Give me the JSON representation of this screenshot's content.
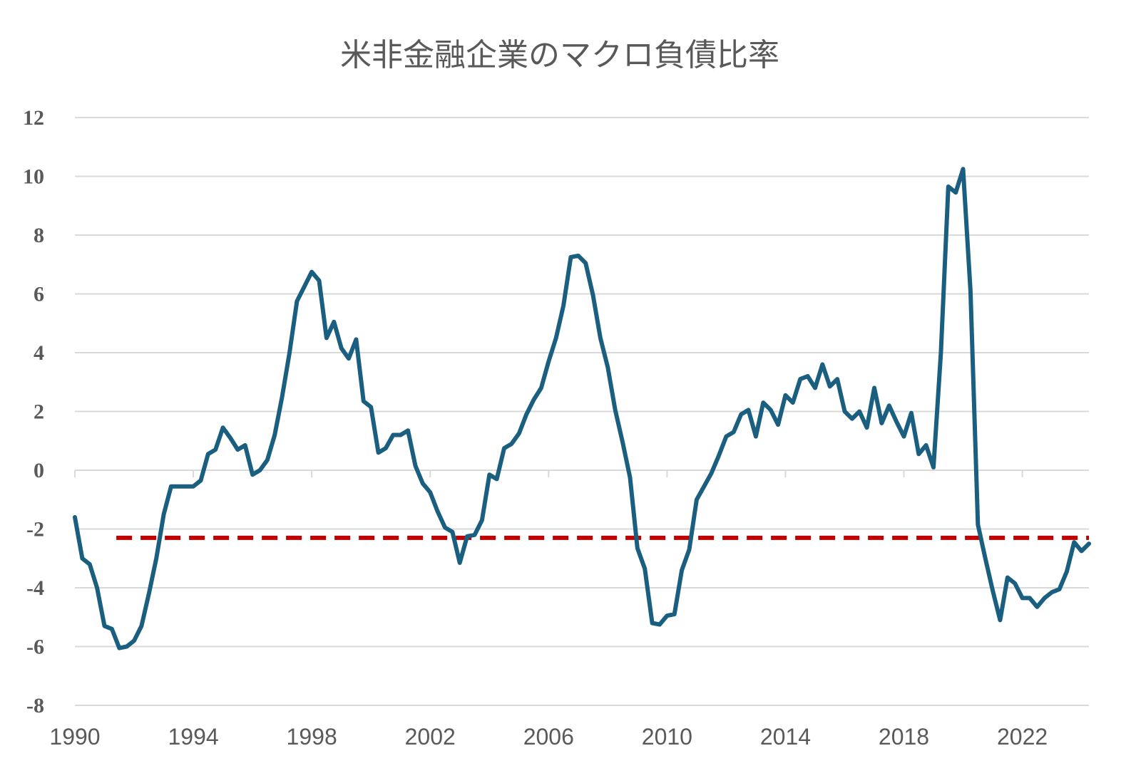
{
  "chart_data": {
    "type": "line",
    "title": "米非金融企業のマクロ負債比率",
    "xlabel": "",
    "ylabel": "",
    "x_start": "1990Q1",
    "x_frequency": "quarterly",
    "x_ticks": [
      "1990",
      "1994",
      "1998",
      "2002",
      "2006",
      "2010",
      "2014",
      "2018",
      "2022"
    ],
    "y_ticks": [
      "12",
      "10",
      "8",
      "6",
      "4",
      "2",
      "0",
      "-2",
      "-4",
      "-6",
      "-8"
    ],
    "ylim": [
      -8,
      12
    ],
    "xlim": [
      1990,
      2024.25
    ],
    "grid": "horizontal",
    "legend": "none",
    "series": [
      {
        "color": "#1a5f80",
        "style": "solid",
        "values": [
          -1.6,
          -3.0,
          -3.2,
          -4.0,
          -5.3,
          -5.4,
          -6.05,
          -6.0,
          -5.8,
          -5.3,
          -4.2,
          -3.0,
          -1.5,
          -0.55,
          -0.55,
          -0.55,
          -0.55,
          -0.35,
          0.55,
          0.7,
          1.45,
          1.1,
          0.7,
          0.85,
          -0.15,
          0.0,
          0.35,
          1.2,
          2.5,
          4.0,
          5.75,
          6.25,
          6.75,
          6.45,
          4.5,
          5.05,
          4.15,
          3.8,
          4.45,
          2.35,
          2.15,
          0.6,
          0.75,
          1.2,
          1.2,
          1.35,
          0.15,
          -0.45,
          -0.75,
          -1.4,
          -1.95,
          -2.1,
          -3.15,
          -2.25,
          -2.2,
          -1.7,
          -0.15,
          -0.3,
          0.75,
          0.9,
          1.25,
          1.9,
          2.4,
          2.8,
          3.7,
          4.5,
          5.6,
          7.25,
          7.3,
          7.05,
          5.95,
          4.5,
          3.5,
          2.05,
          0.95,
          -0.25,
          -2.65,
          -3.35,
          -5.2,
          -5.25,
          -4.95,
          -4.9,
          -3.4,
          -2.7,
          -1.0,
          -0.55,
          -0.1,
          0.5,
          1.15,
          1.3,
          1.9,
          2.05,
          1.15,
          2.3,
          2.05,
          1.55,
          2.55,
          2.3,
          3.1,
          3.2,
          2.8,
          3.6,
          2.85,
          3.1,
          2.0,
          1.75,
          2.0,
          1.45,
          2.8,
          1.6,
          2.2,
          1.65,
          1.15,
          1.95,
          0.55,
          0.85,
          0.1,
          4.0,
          9.65,
          9.45,
          10.25,
          6.1,
          -1.85,
          -3.0,
          -4.1,
          -5.1,
          -3.65,
          -3.85,
          -4.35,
          -4.35,
          -4.65,
          -4.35,
          -4.15,
          -4.05,
          -3.45,
          -2.45,
          -2.75,
          -2.5
        ]
      }
    ],
    "reference_line": {
      "color": "#c00000",
      "style": "dashed",
      "value": -2.3,
      "x_from": 1991.4,
      "x_to": 2024.25
    }
  }
}
